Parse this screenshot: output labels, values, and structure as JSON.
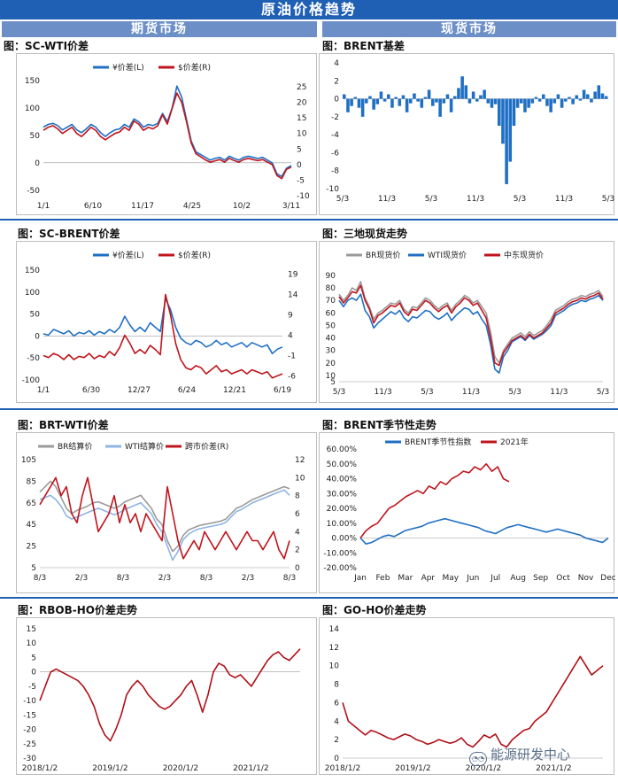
{
  "page": {
    "title": "原油价格趋势",
    "left_header": "期货市场",
    "right_header": "现货市场",
    "watermark": "能源研发中心"
  },
  "colors": {
    "banner": "#1f5fb4",
    "blue": "#1f6fc4",
    "red": "#c0141c",
    "grey": "#9a9a9a",
    "lightblue": "#8db4e2",
    "dark_red": "#b01018"
  },
  "chart_data": [
    {
      "id": "c1",
      "type": "line",
      "title": "图：SC-WTI价差",
      "legend": [
        "¥价差(L)",
        "$价差(R)"
      ],
      "x_ticks": [
        "1/1",
        "6/10",
        "11/17",
        "4/25",
        "10/2",
        "3/11"
      ],
      "y_left": {
        "range": [
          -60,
          150
        ],
        "ticks": [
          -50,
          0,
          50,
          100,
          150
        ]
      },
      "y_right": {
        "range": [
          -10,
          27
        ],
        "ticks": [
          -10,
          -5,
          0,
          5,
          10,
          15,
          20,
          25
        ]
      },
      "series": [
        {
          "name": "¥价差(L)",
          "axis": "left",
          "color": "blue",
          "values": [
            65,
            70,
            72,
            68,
            60,
            65,
            70,
            60,
            55,
            62,
            70,
            65,
            55,
            48,
            55,
            60,
            62,
            70,
            65,
            80,
            75,
            65,
            70,
            68,
            72,
            90,
            75,
            100,
            140,
            120,
            80,
            40,
            20,
            15,
            10,
            5,
            8,
            10,
            5,
            12,
            8,
            5,
            10,
            12,
            10,
            8,
            10,
            5,
            0,
            -20,
            -25,
            -10,
            -5
          ]
        },
        {
          "name": "$价差(R)",
          "axis": "right",
          "color": "red",
          "values": [
            11,
            12,
            12.5,
            11.5,
            10,
            11,
            12,
            10,
            9,
            10.5,
            12,
            11,
            9,
            8,
            9,
            10,
            10.5,
            12,
            11,
            14,
            13,
            11,
            12,
            11.5,
            12.5,
            16,
            13,
            18,
            23,
            20,
            14,
            7,
            3.5,
            2.5,
            1.5,
            0.8,
            1.2,
            1.6,
            0.8,
            2,
            1.3,
            0.8,
            1.6,
            2,
            1.6,
            1.3,
            1.6,
            0.8,
            0,
            -3.5,
            -4.5,
            -1.5,
            -0.8
          ]
        }
      ]
    },
    {
      "id": "c2",
      "type": "bar",
      "title": "图：BRENT基差",
      "x_ticks": [
        "5/3",
        "11/3",
        "5/3",
        "11/3",
        "5/3",
        "11/3",
        "5/3"
      ],
      "y_left": {
        "range": [
          -10,
          4
        ],
        "ticks": [
          -10,
          -8,
          -6,
          -4,
          -2,
          0,
          2,
          4
        ]
      },
      "series": [
        {
          "name": "BRENT基差",
          "color": "blue",
          "values": [
            0.5,
            -1.5,
            -0.8,
            0.2,
            -1,
            -2,
            -0.5,
            0.3,
            -1.2,
            -0.6,
            0.8,
            -0.3,
            0.5,
            -1,
            0.2,
            -0.8,
            0.4,
            -1.5,
            -0.5,
            0.6,
            -0.3,
            -1,
            0.2,
            1,
            -0.8,
            -0.4,
            -2,
            -0.5,
            0.5,
            -1.5,
            0.3,
            1.2,
            2.5,
            1.5,
            -0.5,
            0.8,
            -0.3,
            0.4,
            1,
            -0.5,
            -1,
            -0.6,
            -3,
            -5,
            -9.5,
            -7,
            -3,
            -1,
            -0.5,
            -1.5,
            -1,
            -0.5,
            0.2,
            -0.3,
            0.5,
            -0.8,
            -1.5,
            -0.5,
            0.5,
            -1,
            -0.3,
            0.2,
            -0.6,
            0.4,
            -0.2,
            1,
            0.5,
            -0.4,
            0.8,
            1.5,
            0.6,
            0.3
          ]
        }
      ]
    },
    {
      "id": "c3",
      "type": "line",
      "title": "图：SC-BRENT价差",
      "legend": [
        "¥价差(L)",
        "$价差(R)"
      ],
      "x_ticks": [
        "1/1",
        "6/30",
        "12/27",
        "6/24",
        "12/21",
        "6/19"
      ],
      "y_left": {
        "range": [
          -100,
          150
        ],
        "ticks": [
          -100,
          -50,
          0,
          50,
          100,
          150
        ]
      },
      "y_right": {
        "range": [
          -7,
          20
        ],
        "ticks": [
          -6,
          -1,
          4,
          9,
          14,
          19
        ]
      },
      "series": [
        {
          "name": "¥价差(L)",
          "axis": "left",
          "color": "blue",
          "values": [
            5,
            2,
            15,
            10,
            5,
            12,
            0,
            8,
            5,
            12,
            2,
            10,
            5,
            15,
            8,
            20,
            45,
            25,
            10,
            20,
            10,
            30,
            20,
            10,
            85,
            60,
            20,
            -5,
            -15,
            -20,
            -10,
            -15,
            -25,
            -20,
            -10,
            -20,
            -15,
            -25,
            -20,
            -15,
            -25,
            -15,
            -20,
            -25,
            -20,
            -40,
            -30,
            -25
          ]
        },
        {
          "name": "$价差(R)",
          "axis": "right",
          "color": "red",
          "values": [
            -1,
            -1.5,
            -0.5,
            -1,
            -2,
            -0.8,
            -2,
            -1.2,
            -1.5,
            -0.5,
            -1.8,
            -1,
            -1.5,
            0,
            -1,
            1,
            4,
            2,
            -0.5,
            0.5,
            -0.5,
            1.5,
            0.5,
            -0.8,
            14,
            9,
            2,
            -2,
            -4,
            -4.5,
            -3.5,
            -4,
            -5.5,
            -4.5,
            -3.5,
            -5,
            -4.5,
            -5.5,
            -5,
            -4.5,
            -5.5,
            -4.5,
            -5,
            -5.5,
            -5,
            -6.5,
            -6,
            -5.5
          ]
        }
      ]
    },
    {
      "id": "c4",
      "type": "line",
      "title": "图：三地现货走势",
      "legend": [
        "BR现货价",
        "WTI现货价",
        "中东现货价"
      ],
      "x_ticks": [
        "5/3",
        "11/3",
        "5/3",
        "11/3",
        "5/3",
        "11/3",
        "5/3"
      ],
      "y_left": {
        "range": [
          5,
          90
        ],
        "ticks": [
          5,
          10,
          20,
          30,
          40,
          50,
          60,
          70,
          80,
          90
        ]
      },
      "series": [
        {
          "name": "BR现货价",
          "color": "grey",
          "values": [
            75,
            70,
            74,
            80,
            78,
            85,
            72,
            65,
            55,
            60,
            62,
            65,
            68,
            67,
            70,
            63,
            60,
            65,
            64,
            68,
            72,
            70,
            66,
            63,
            66,
            68,
            62,
            67,
            70,
            74,
            72,
            68,
            70,
            65,
            60,
            45,
            25,
            20,
            30,
            35,
            40,
            42,
            44,
            41,
            45,
            42,
            44,
            46,
            50,
            55,
            62,
            64,
            66,
            69,
            71,
            72,
            74,
            73,
            75,
            76,
            78,
            73
          ]
        },
        {
          "name": "WTI现货价",
          "color": "blue",
          "values": [
            70,
            65,
            70,
            72,
            70,
            75,
            62,
            57,
            48,
            52,
            55,
            58,
            61,
            59,
            62,
            56,
            53,
            57,
            56,
            59,
            62,
            61,
            57,
            55,
            57,
            60,
            54,
            58,
            61,
            64,
            63,
            59,
            61,
            55,
            50,
            35,
            15,
            12,
            25,
            30,
            37,
            39,
            41,
            38,
            42,
            39,
            41,
            43,
            46,
            50,
            58,
            60,
            62,
            65,
            67,
            68,
            70,
            69,
            71,
            72,
            74,
            70
          ]
        },
        {
          "name": "中东现货价",
          "color": "red",
          "values": [
            73,
            68,
            72,
            77,
            76,
            82,
            70,
            63,
            52,
            58,
            60,
            63,
            66,
            65,
            68,
            61,
            58,
            63,
            62,
            66,
            70,
            68,
            64,
            61,
            64,
            66,
            60,
            65,
            68,
            72,
            70,
            66,
            68,
            62,
            56,
            40,
            20,
            18,
            28,
            33,
            38,
            40,
            42,
            39,
            43,
            40,
            42,
            44,
            48,
            52,
            60,
            62,
            64,
            67,
            69,
            70,
            72,
            71,
            73,
            74,
            76,
            71
          ]
        }
      ]
    },
    {
      "id": "c5",
      "type": "line",
      "title": "图：BRT-WTI价差",
      "legend": [
        "BR结算价",
        "WTI结算价",
        "跨市价差(R)"
      ],
      "x_ticks": [
        "8/3",
        "2/3",
        "8/3",
        "2/3",
        "8/3",
        "2/3",
        "8/3"
      ],
      "y_left": {
        "range": [
          5,
          105
        ],
        "ticks": [
          5,
          25,
          45,
          65,
          85,
          105
        ]
      },
      "y_right": {
        "range": [
          0,
          12
        ],
        "ticks": [
          0,
          2,
          4,
          6,
          8,
          10,
          12
        ]
      },
      "series": [
        {
          "name": "BR结算价",
          "axis": "left",
          "color": "grey",
          "values": [
            75,
            80,
            85,
            80,
            70,
            60,
            55,
            58,
            60,
            62,
            65,
            66,
            64,
            62,
            60,
            62,
            66,
            68,
            70,
            72,
            66,
            60,
            50,
            45,
            30,
            20,
            25,
            35,
            40,
            42,
            44,
            45,
            46,
            47,
            48,
            50,
            55,
            60,
            62,
            65,
            68,
            70,
            72,
            74,
            76,
            78,
            80,
            78
          ]
        },
        {
          "name": "WTI结算价",
          "axis": "left",
          "color": "lightblue",
          "values": [
            68,
            70,
            72,
            68,
            62,
            53,
            50,
            52,
            54,
            56,
            58,
            60,
            58,
            56,
            54,
            56,
            59,
            61,
            63,
            65,
            60,
            55,
            45,
            38,
            25,
            12,
            20,
            31,
            36,
            39,
            41,
            42,
            43,
            44,
            45,
            47,
            52,
            57,
            59,
            62,
            65,
            67,
            69,
            71,
            73,
            75,
            77,
            72
          ]
        },
        {
          "name": "跨市价差(R)",
          "axis": "right",
          "color": "red",
          "values": [
            7,
            8,
            9,
            10,
            8,
            9,
            6,
            5,
            8,
            10,
            7,
            4,
            5,
            6,
            8,
            5,
            7,
            5,
            6,
            4,
            6,
            5,
            4,
            3,
            9,
            6,
            3,
            1,
            2,
            3,
            2,
            4,
            3,
            2,
            3,
            4,
            3,
            2,
            3,
            4,
            3,
            3,
            2,
            3,
            4,
            2,
            1,
            3
          ]
        }
      ]
    },
    {
      "id": "c6",
      "type": "line",
      "title": "图：BRENT季节性走势",
      "legend": [
        "BRENT季节性指数",
        "2021年"
      ],
      "x_ticks": [
        "Jan",
        "Feb",
        "Mar",
        "Apr",
        "May",
        "Jun",
        "Jul",
        "Aug",
        "Sep",
        "Oct",
        "Nov",
        "Dec"
      ],
      "y_left": {
        "range": [
          -20,
          60
        ],
        "ticks": [
          "-20.00%",
          "-10.00%",
          "0.00%",
          "10.00%",
          "20.00%",
          "30.00%",
          "40.00%",
          "50.00%",
          "60.00%"
        ]
      },
      "series": [
        {
          "name": "BRENT季节性指数",
          "color": "blue",
          "values": [
            0,
            -4,
            -3,
            -1,
            1,
            2,
            1,
            3,
            5,
            6,
            7,
            8,
            10,
            11,
            12,
            13,
            12,
            11,
            10,
            9,
            8,
            7,
            5,
            4,
            3,
            5,
            7,
            8,
            9,
            8,
            7,
            6,
            5,
            4,
            5,
            6,
            5,
            4,
            3,
            2,
            0,
            -1,
            -2,
            -3,
            0
          ]
        },
        {
          "name": "2021年",
          "color": "red",
          "values": [
            0,
            5,
            8,
            10,
            15,
            20,
            22,
            25,
            28,
            30,
            32,
            30,
            35,
            33,
            38,
            36,
            40,
            42,
            45,
            44,
            48,
            46,
            50,
            45,
            48,
            40,
            38
          ]
        }
      ]
    },
    {
      "id": "c7",
      "type": "line",
      "title": "图：RBOB-HO价差走势",
      "x_ticks": [
        "2018/1/2",
        "2019/1/2",
        "2020/1/2",
        "2021/1/2"
      ],
      "y_left": {
        "range": [
          -30,
          15
        ],
        "ticks": [
          -30,
          -25,
          -20,
          -15,
          -10,
          -5,
          0,
          5,
          10,
          15
        ]
      },
      "series": [
        {
          "name": "RBOB-HO",
          "color": "dark_red",
          "values": [
            -10,
            -5,
            0,
            1,
            0,
            -1,
            -2,
            -3,
            -5,
            -8,
            -12,
            -18,
            -22,
            -24,
            -20,
            -15,
            -8,
            -5,
            -3,
            -5,
            -8,
            -10,
            -12,
            -13,
            -12,
            -10,
            -8,
            -5,
            -3,
            -8,
            -14,
            -8,
            0,
            3,
            2,
            -1,
            -2,
            -1,
            -3,
            -5,
            -2,
            1,
            4,
            6,
            7,
            5,
            4,
            6,
            8
          ]
        }
      ]
    },
    {
      "id": "c8",
      "type": "line",
      "title": "图：GO-HO价差走势",
      "x_ticks": [
        "2018/1/2",
        "2019/1/2",
        "2020/1/2",
        "2021/1/2"
      ],
      "y_left": {
        "range": [
          0,
          14
        ],
        "ticks": [
          0,
          2,
          4,
          6,
          8,
          10,
          12,
          14
        ]
      },
      "series": [
        {
          "name": "GO-HO",
          "color": "dark_red",
          "values": [
            6,
            4,
            3.5,
            3,
            2.5,
            3,
            2.8,
            2.5,
            2.2,
            2,
            2.3,
            2.6,
            2.4,
            2,
            1.8,
            1.5,
            1.7,
            2,
            1.8,
            1.6,
            1.8,
            2.2,
            1.5,
            1.2,
            1.8,
            2.5,
            2.2,
            2.6,
            1.5,
            1.2,
            2,
            2.5,
            3,
            3.2,
            4,
            4.5,
            5,
            6,
            7,
            8,
            9,
            10,
            11,
            10,
            9,
            9.5,
            10
          ]
        }
      ]
    }
  ]
}
